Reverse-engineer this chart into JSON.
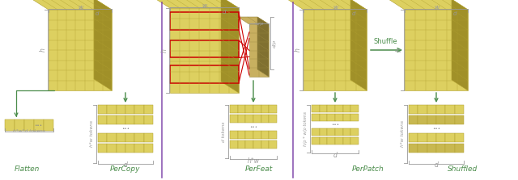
{
  "bg_color": "#ffffff",
  "cube_fill": "#ddd060",
  "cube_fill_light": "#e8e070",
  "cube_edge": "#b0a030",
  "cube_dark": "#a09028",
  "token_fill": "#ddd060",
  "token_edge": "#b0a030",
  "token_gray_fill": "#c8b850",
  "arrow_color": "#4a8c4a",
  "red_color": "#cc0000",
  "purple_color": "#7030a0",
  "dim_color": "#999999",
  "label_color": "#4a8c4a",
  "labels": [
    "Flatten",
    "PerCopy",
    "PerFeat",
    "PerPatch",
    "Shuffled"
  ]
}
